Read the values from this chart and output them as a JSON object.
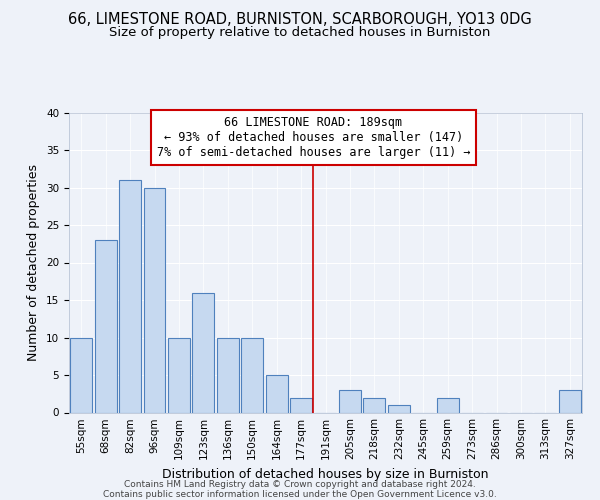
{
  "title": "66, LIMESTONE ROAD, BURNISTON, SCARBOROUGH, YO13 0DG",
  "subtitle": "Size of property relative to detached houses in Burniston",
  "xlabel": "Distribution of detached houses by size in Burniston",
  "ylabel": "Number of detached properties",
  "bar_labels": [
    "55sqm",
    "68sqm",
    "82sqm",
    "96sqm",
    "109sqm",
    "123sqm",
    "136sqm",
    "150sqm",
    "164sqm",
    "177sqm",
    "191sqm",
    "205sqm",
    "218sqm",
    "232sqm",
    "245sqm",
    "259sqm",
    "273sqm",
    "286sqm",
    "300sqm",
    "313sqm",
    "327sqm"
  ],
  "bar_values": [
    10,
    23,
    31,
    30,
    10,
    16,
    10,
    10,
    5,
    2,
    0,
    3,
    2,
    1,
    0,
    2,
    0,
    0,
    0,
    0,
    3
  ],
  "bar_color": "#c6d9f0",
  "bar_edge_color": "#4f81bd",
  "vline_x_index": 10,
  "vline_color": "#cc0000",
  "annotation_title": "66 LIMESTONE ROAD: 189sqm",
  "annotation_line2": "← 93% of detached houses are smaller (147)",
  "annotation_line3": "7% of semi-detached houses are larger (11) →",
  "annotation_box_edge_color": "#cc0000",
  "ylim": [
    0,
    40
  ],
  "yticks": [
    0,
    5,
    10,
    15,
    20,
    25,
    30,
    35,
    40
  ],
  "footer_line1": "Contains HM Land Registry data © Crown copyright and database right 2024.",
  "footer_line2": "Contains public sector information licensed under the Open Government Licence v3.0.",
  "background_color": "#eef2f9",
  "grid_color": "#ffffff",
  "title_fontsize": 10.5,
  "subtitle_fontsize": 9.5,
  "axis_label_fontsize": 9,
  "tick_fontsize": 7.5,
  "footer_fontsize": 6.5,
  "annotation_fontsize": 8.5
}
